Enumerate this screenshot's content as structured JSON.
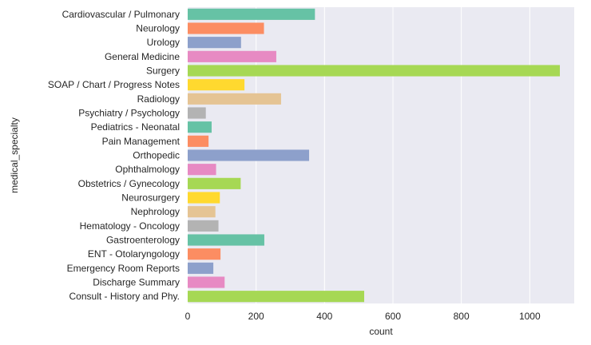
{
  "chart_data": {
    "type": "bar",
    "orientation": "horizontal",
    "xlabel": "count",
    "ylabel": "medical_specialty",
    "xlim": [
      0,
      1130
    ],
    "xticks": [
      0,
      200,
      400,
      600,
      800,
      1000
    ],
    "grid": true,
    "background": "#eaeaf2",
    "palette": [
      "#66c2a5",
      "#fc8d62",
      "#8da0cb",
      "#e78ac3",
      "#a6d854",
      "#ffd92f",
      "#e5c494",
      "#b3b3b3"
    ],
    "categories": [
      "Cardiovascular / Pulmonary",
      "Neurology",
      "Urology",
      "General Medicine",
      "Surgery",
      "SOAP / Chart / Progress Notes",
      "Radiology",
      "Psychiatry / Psychology",
      "Pediatrics - Neonatal",
      "Pain Management",
      "Orthopedic",
      "Ophthalmology",
      "Obstetrics / Gynecology",
      "Neurosurgery",
      "Nephrology",
      "Hematology - Oncology",
      "Gastroenterology",
      "ENT - Otolaryngology",
      "Emergency Room Reports",
      "Discharge Summary",
      "Consult - History and Phy."
    ],
    "values": [
      372,
      223,
      156,
      259,
      1088,
      166,
      273,
      53,
      70,
      61,
      355,
      83,
      155,
      94,
      81,
      90,
      224,
      96,
      75,
      108,
      516
    ]
  }
}
